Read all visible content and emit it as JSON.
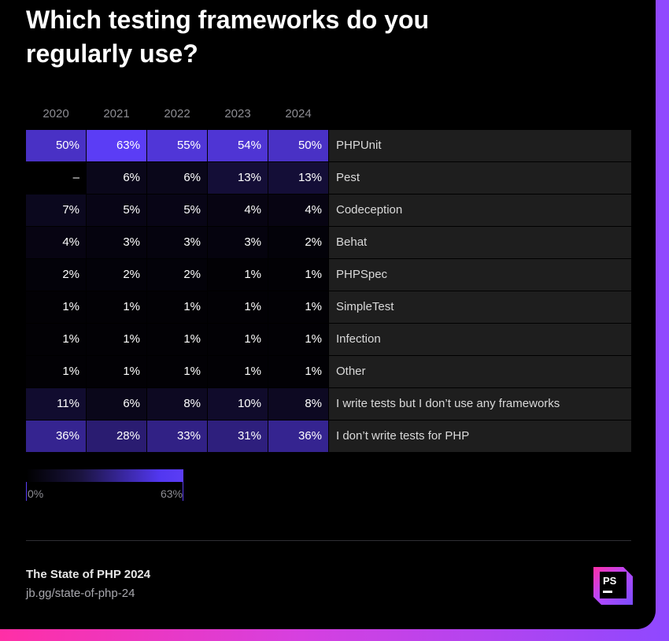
{
  "title": "Which testing frameworks do you regularly use?",
  "footer": {
    "title": "The State of PHP 2024",
    "link": "jb.gg/state-of-php-24"
  },
  "logo_text": "PS",
  "legend": {
    "min_label": "0%",
    "max_label": "63%"
  },
  "colors": {
    "background": "#000000",
    "accent": "#5b3df5",
    "label_bg": "#1e1e1e",
    "frame_left": "#ff2fa6",
    "frame_right": "#8f48ff"
  },
  "chart_data": {
    "type": "heatmap",
    "title": "Which testing frameworks do you regularly use?",
    "columns": [
      "2020",
      "2021",
      "2022",
      "2023",
      "2024"
    ],
    "rows": [
      {
        "label": "PHPUnit",
        "values": [
          50,
          63,
          55,
          54,
          50
        ]
      },
      {
        "label": "Pest",
        "values": [
          null,
          6,
          6,
          13,
          13
        ]
      },
      {
        "label": "Codeception",
        "values": [
          7,
          5,
          5,
          4,
          4
        ]
      },
      {
        "label": "Behat",
        "values": [
          4,
          3,
          3,
          3,
          2
        ]
      },
      {
        "label": "PHPSpec",
        "values": [
          2,
          2,
          2,
          1,
          1
        ]
      },
      {
        "label": "SimpleTest",
        "values": [
          1,
          1,
          1,
          1,
          1
        ]
      },
      {
        "label": "Infection",
        "values": [
          1,
          1,
          1,
          1,
          1
        ]
      },
      {
        "label": "Other",
        "values": [
          1,
          1,
          1,
          1,
          1
        ]
      },
      {
        "label": "I write tests but I don’t use any frameworks",
        "values": [
          11,
          6,
          8,
          10,
          8
        ]
      },
      {
        "label": "I don’t write tests for PHP",
        "values": [
          36,
          28,
          33,
          31,
          36
        ]
      }
    ],
    "missing_label": "–",
    "value_suffix": "%",
    "color_scale": {
      "min": 0,
      "max": 63,
      "min_color": "#000000",
      "max_color": "#5b3df5"
    }
  }
}
